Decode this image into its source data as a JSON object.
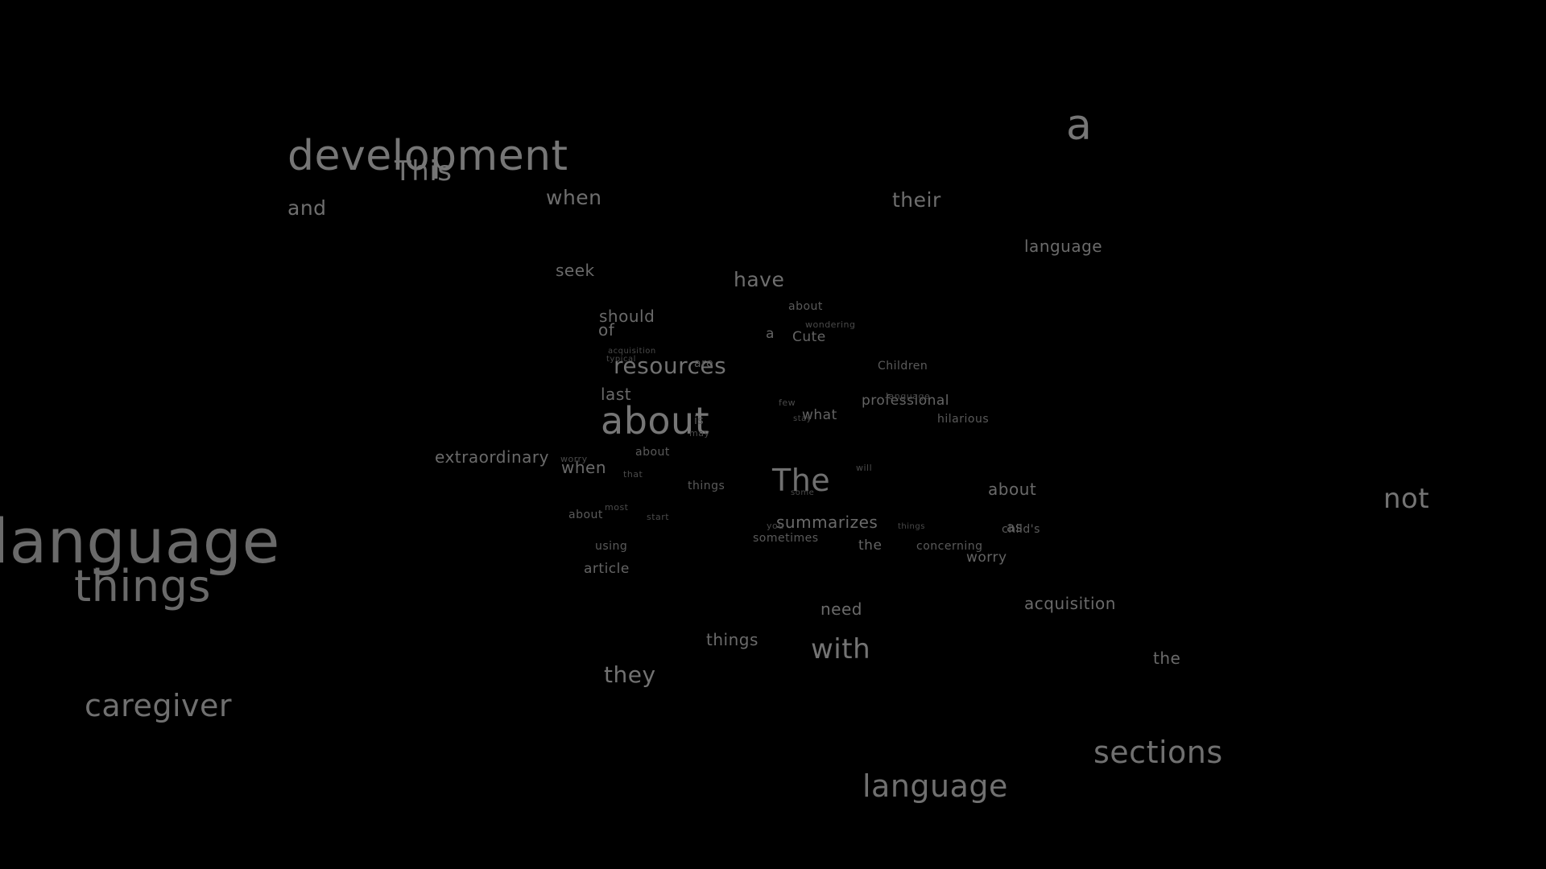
{
  "word_cloud": {
    "background": "#000000",
    "text_color": "#6a6a6a",
    "words": [
      "development",
      "This",
      "and",
      "when",
      "a",
      "their",
      "language",
      "seek",
      "have",
      "about",
      "should",
      "of",
      "a",
      "Cute",
      "wondering",
      "acquisition",
      "typical",
      "resources",
      "are",
      "Children",
      "last",
      "few",
      "professional",
      "language",
      "about",
      "what",
      "stay",
      "hilarious",
      "is",
      "may",
      "extraordinary",
      "worry",
      "when",
      "about",
      "that",
      "will",
      "things",
      "The",
      "some",
      "about",
      "not",
      "about",
      "most",
      "start",
      "summarizes",
      "things",
      "you",
      "as",
      "child's",
      "sometimes",
      "using",
      "the",
      "concerning",
      "language",
      "worry",
      "article",
      "things",
      "acquisition",
      "need",
      "things",
      "with",
      "the",
      "they",
      "caregiver",
      "sections",
      "language"
    ]
  }
}
